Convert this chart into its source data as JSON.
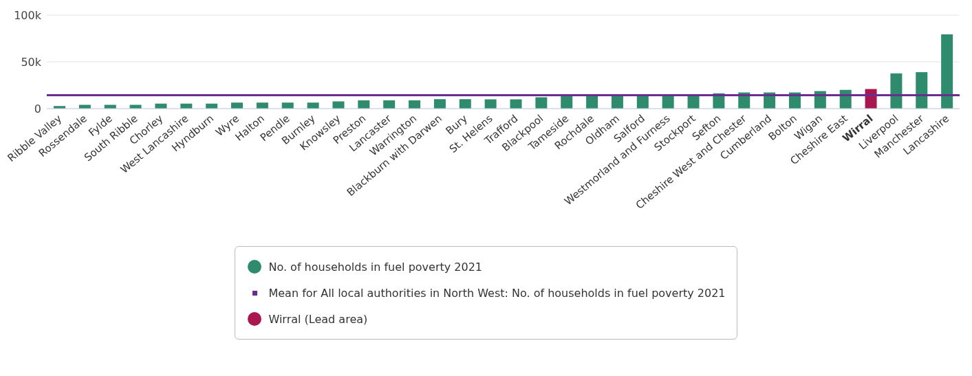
{
  "chart_data": {
    "type": "bar",
    "stacked": true,
    "categories": [
      "Ribble Valley",
      "Rossendale",
      "Fylde",
      "South Ribble",
      "Chorley",
      "West Lancashire",
      "Hyndburn",
      "Wyre",
      "Halton",
      "Pendle",
      "Burnley",
      "Knowsley",
      "Preston",
      "Lancaster",
      "Warrington",
      "Blackburn with Darwen",
      "Bury",
      "St. Helens",
      "Trafford",
      "Blackpool",
      "Tameside",
      "Rochdale",
      "Oldham",
      "Salford",
      "Westmorland and Furness",
      "Stockport",
      "Sefton",
      "Cheshire West and Chester",
      "Cumberland",
      "Bolton",
      "Wigan",
      "Cheshire East",
      "Wirral",
      "Liverpool",
      "Manchester",
      "Lancashire"
    ],
    "series": [
      {
        "name": "No. of households in fuel poverty 2021",
        "color": "#2e8b6e",
        "values": [
          2700,
          4000,
          4000,
          4000,
          5400,
          5400,
          5400,
          6400,
          6400,
          6400,
          6400,
          7800,
          8800,
          8800,
          8800,
          10200,
          10200,
          10000,
          10000,
          12200,
          13800,
          14000,
          14000,
          14300,
          14500,
          14500,
          16300,
          17300,
          17300,
          17300,
          18700,
          20000,
          null,
          37700,
          39000,
          79500
        ]
      },
      {
        "name": "Wirral (Lead area)",
        "color": "#a8174f",
        "values": [
          null,
          null,
          null,
          null,
          null,
          null,
          null,
          null,
          null,
          null,
          null,
          null,
          null,
          null,
          null,
          null,
          null,
          null,
          null,
          null,
          null,
          null,
          null,
          null,
          null,
          null,
          null,
          null,
          null,
          null,
          null,
          null,
          21000,
          null,
          null,
          null
        ]
      }
    ],
    "ref_lines": [
      {
        "axis": "y",
        "value": 14400,
        "label": "Mean for All local authorities in North West: No. of households in fuel poverty 2021",
        "color": "#6a2c8e"
      }
    ],
    "ylim": [
      0,
      100000
    ],
    "yticks": [
      {
        "value": 0,
        "label": "0"
      },
      {
        "value": 50000,
        "label": "50k"
      },
      {
        "value": 100000,
        "label": "100k"
      }
    ],
    "grid": "y",
    "legend": "bottom"
  }
}
